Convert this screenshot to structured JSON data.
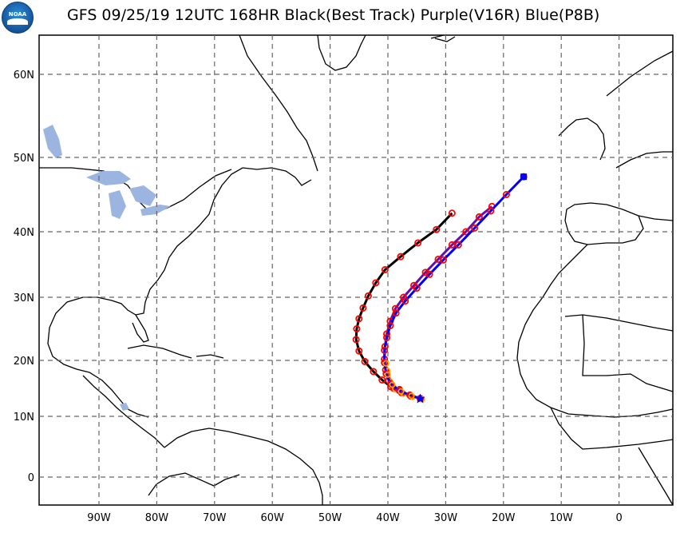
{
  "header": {
    "title": "GFS  09/25/19 12UTC  168HR Black(Best Track) Purple(V16R) Blue(P8B)",
    "logo_text": "NOAA"
  },
  "colors": {
    "best_track": "#000000",
    "v16r": "#6a0dad",
    "p8b": "#0000ff",
    "markers": "#ff0000",
    "lakes": "#9bb5e0",
    "orange_marker": "#ffa500"
  },
  "map": {
    "lat_labels": [
      "60N",
      "50N",
      "40N",
      "30N",
      "20N",
      "10N",
      "0"
    ],
    "lon_labels": [
      "90W",
      "80W",
      "70W",
      "60W",
      "50W",
      "40W",
      "30W",
      "20W",
      "10W",
      "0"
    ],
    "grid": "dashed",
    "lon_range": [
      -100,
      10
    ],
    "lat_range": [
      -5,
      65
    ]
  },
  "tracks": [
    {
      "name": "Black(Best Track)",
      "color": "#000000",
      "points": [
        [
          -38.0,
          14.8
        ],
        [
          -39.5,
          15.3
        ],
        [
          -41.0,
          16.5
        ],
        [
          -42.5,
          18.0
        ],
        [
          -44.0,
          19.8
        ],
        [
          -45.0,
          21.5
        ],
        [
          -45.5,
          23.3
        ],
        [
          -45.4,
          25.0
        ],
        [
          -45.0,
          26.6
        ],
        [
          -44.3,
          28.3
        ],
        [
          -43.4,
          30.2
        ],
        [
          -42.1,
          32.2
        ],
        [
          -40.5,
          34.2
        ],
        [
          -37.8,
          36.2
        ],
        [
          -34.8,
          38.3
        ],
        [
          -31.6,
          40.3
        ],
        [
          -28.9,
          42.5
        ]
      ]
    },
    {
      "name": "Purple(V16R)",
      "color": "#6a0dad",
      "points": [
        [
          -34.4,
          13.2
        ],
        [
          -36.0,
          13.6
        ],
        [
          -37.6,
          14.2
        ],
        [
          -39.0,
          15.0
        ],
        [
          -39.9,
          16.4
        ],
        [
          -40.4,
          18.3
        ],
        [
          -40.6,
          20.2
        ],
        [
          -40.5,
          22.2
        ],
        [
          -40.2,
          24.2
        ],
        [
          -39.6,
          26.2
        ],
        [
          -38.7,
          28.2
        ],
        [
          -37.3,
          30.0
        ],
        [
          -35.5,
          31.8
        ],
        [
          -33.5,
          33.8
        ],
        [
          -31.3,
          35.8
        ],
        [
          -28.9,
          38.0
        ],
        [
          -26.5,
          40.0
        ],
        [
          -24.2,
          42.0
        ],
        [
          -22.0,
          43.4
        ]
      ]
    },
    {
      "name": "Blue(P8B)",
      "color": "#0000ff",
      "points": [
        [
          -34.4,
          13.2
        ],
        [
          -36.2,
          13.8
        ],
        [
          -38.0,
          14.6
        ],
        [
          -39.5,
          15.8
        ],
        [
          -40.3,
          17.6
        ],
        [
          -40.6,
          19.6
        ],
        [
          -40.6,
          21.6
        ],
        [
          -40.2,
          23.6
        ],
        [
          -39.6,
          25.5
        ],
        [
          -38.6,
          27.5
        ],
        [
          -37.0,
          29.4
        ],
        [
          -35.0,
          31.4
        ],
        [
          -32.8,
          33.5
        ],
        [
          -30.4,
          35.7
        ],
        [
          -27.8,
          38.0
        ],
        [
          -25.0,
          40.5
        ],
        [
          -22.2,
          42.8
        ],
        [
          -19.5,
          45.0
        ],
        [
          -16.5,
          47.4
        ]
      ]
    }
  ]
}
